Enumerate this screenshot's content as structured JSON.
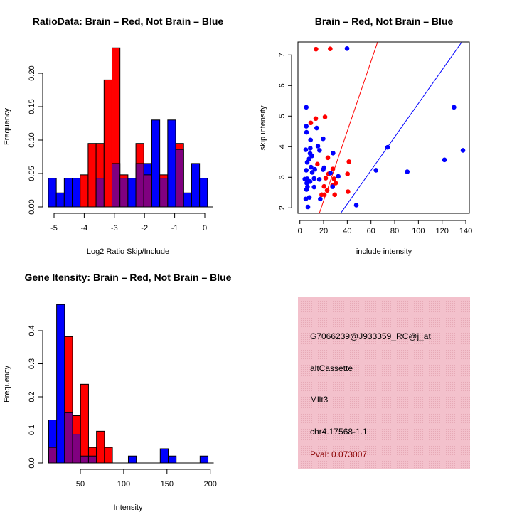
{
  "colors": {
    "red": "#ff0000",
    "blue": "#0000ff",
    "overlap": "#800080",
    "panel_bg": "#f3c1cc",
    "pval": "#8b0000"
  },
  "chart_data": [
    {
      "type": "bar",
      "title": "RatioData: Brain – Red, Not Brain – Blue",
      "xlabel": "Log2 Ratio Skip/Include",
      "ylabel": "Frequency",
      "xticks": [
        "-5",
        "-4",
        "-3",
        "-2",
        "-1",
        "0"
      ],
      "xtick_values": [
        -5,
        -4,
        -3,
        -2,
        -1,
        0
      ],
      "yticks": [
        "0.00",
        "0.05",
        "0.10",
        "0.15",
        "0.20"
      ],
      "ytick_values": [
        0,
        0.05,
        0.1,
        0.15,
        0.2
      ],
      "bin_start": -5.19,
      "bin_width": 0.264,
      "series": [
        {
          "name": "Brain",
          "color": "red",
          "values": [
            0,
            0,
            0,
            0,
            0.048,
            0.095,
            0.095,
            0.19,
            0.238,
            0.048,
            0,
            0.095,
            0.048,
            0,
            0.048,
            0,
            0.095,
            0,
            0,
            0
          ]
        },
        {
          "name": "Not Brain",
          "color": "blue",
          "values": [
            0.043,
            0.021,
            0.043,
            0.043,
            0,
            0,
            0.043,
            0,
            0.065,
            0.043,
            0.043,
            0.065,
            0.065,
            0.13,
            0.043,
            0.13,
            0.086,
            0.021,
            0.065,
            0.043
          ]
        }
      ]
    },
    {
      "type": "scatter",
      "title": "Brain – Red, Not Brain – Blue",
      "xlabel": "include intensity",
      "ylabel": "skip intensity",
      "xticks": [
        "0",
        "20",
        "40",
        "60",
        "80",
        "100",
        "120",
        "140"
      ],
      "xtick_values": [
        0,
        20,
        40,
        60,
        80,
        100,
        120,
        140
      ],
      "yticks": [
        "2",
        "3",
        "4",
        "5",
        "6",
        "7"
      ],
      "ytick_values": [
        2,
        3,
        4,
        5,
        6,
        7
      ],
      "xlim": [
        -2,
        143
      ],
      "ylim": [
        1.82,
        7.42
      ],
      "lines": [
        {
          "name": "Brain fit",
          "color": "red",
          "intercept": -0.05,
          "slope": 0.114
        },
        {
          "name": "Not Brain fit",
          "color": "blue",
          "intercept": -0.065,
          "slope": 0.0548
        }
      ],
      "series": [
        {
          "name": "Brain",
          "color": "red",
          "points": [
            [
              13.6,
              7.19
            ],
            [
              25.6,
              7.2
            ],
            [
              13.4,
              4.92
            ],
            [
              21.2,
              4.97
            ],
            [
              9.2,
              4.78
            ],
            [
              23.6,
              3.64
            ],
            [
              14.8,
              3.43
            ],
            [
              41.4,
              3.51
            ],
            [
              27.8,
              3.27
            ],
            [
              24.2,
              3.11
            ],
            [
              40.2,
              3.11
            ],
            [
              21.8,
              2.97
            ],
            [
              28.8,
              2.95
            ],
            [
              30.2,
              2.81
            ],
            [
              20.4,
              2.7
            ],
            [
              27.6,
              2.74
            ],
            [
              23,
              2.57
            ],
            [
              18.4,
              2.43
            ],
            [
              20.6,
              2.43
            ],
            [
              29.4,
              2.43
            ],
            [
              40.6,
              2.53
            ]
          ]
        },
        {
          "name": "Not Brain",
          "color": "blue",
          "points": [
            [
              39.8,
              7.21
            ],
            [
              5.4,
              5.29
            ],
            [
              5.4,
              4.67
            ],
            [
              5.6,
              4.47
            ],
            [
              14.2,
              4.61
            ],
            [
              9,
              4.22
            ],
            [
              19.6,
              4.26
            ],
            [
              8.8,
              3.95
            ],
            [
              15.2,
              4.02
            ],
            [
              5,
              3.9
            ],
            [
              16.6,
              3.88
            ],
            [
              8.6,
              3.78
            ],
            [
              10.2,
              3.7
            ],
            [
              7.8,
              3.6
            ],
            [
              6.2,
              3.49
            ],
            [
              28,
              3.79
            ],
            [
              9.4,
              3.33
            ],
            [
              20.4,
              3.31
            ],
            [
              5.4,
              3.23
            ],
            [
              12.6,
              3.26
            ],
            [
              10.4,
              3.16
            ],
            [
              19.6,
              3.25
            ],
            [
              25.8,
              3.14
            ],
            [
              32.4,
              3.03
            ],
            [
              4.2,
              2.94
            ],
            [
              6.2,
              2.95
            ],
            [
              12,
              2.96
            ],
            [
              16.4,
              2.93
            ],
            [
              8.6,
              2.86
            ],
            [
              5.8,
              2.81
            ],
            [
              7.2,
              2.87
            ],
            [
              6.4,
              2.69
            ],
            [
              12,
              2.68
            ],
            [
              27.6,
              2.69
            ],
            [
              5.6,
              2.6
            ],
            [
              8,
              2.34
            ],
            [
              5,
              2.29
            ],
            [
              17.2,
              2.29
            ],
            [
              6.8,
              2.03
            ],
            [
              47.6,
              2.09
            ],
            [
              64.2,
              3.23
            ],
            [
              74,
              3.98
            ],
            [
              90.6,
              3.18
            ],
            [
              122,
              3.57
            ],
            [
              130,
              5.29
            ],
            [
              137.6,
              3.88
            ]
          ]
        }
      ]
    },
    {
      "type": "bar",
      "title": "Gene Itensity: Brain – Red, Not Brain – Blue",
      "xlabel": "Intensity",
      "ylabel": "Frequency",
      "xticks": [
        "50",
        "100",
        "150",
        "200"
      ],
      "xtick_values": [
        50,
        100,
        150,
        200
      ],
      "yticks": [
        "0.0",
        "0.1",
        "0.2",
        "0.3",
        "0.4"
      ],
      "ytick_values": [
        0,
        0.1,
        0.2,
        0.3,
        0.4
      ],
      "bin_start": 13.4,
      "bin_width": 9.2,
      "series": [
        {
          "name": "Brain",
          "color": "red",
          "values": [
            0.047,
            0,
            0.382,
            0.143,
            0.238,
            0.047,
            0.096,
            0.047,
            0,
            0,
            0,
            0,
            0,
            0,
            0,
            0,
            0,
            0,
            0,
            0
          ]
        },
        {
          "name": "Not Brain",
          "color": "blue",
          "values": [
            0.13,
            0.479,
            0.152,
            0.087,
            0.021,
            0.021,
            0,
            0,
            0,
            0,
            0.021,
            0,
            0,
            0,
            0.043,
            0.021,
            0,
            0,
            0,
            0.021
          ]
        }
      ]
    }
  ],
  "info_panel": {
    "probe_id": "G7066239@J933359_RC@j_at",
    "event_type": "altCassette",
    "gene": "Mllt3",
    "location": "chr4.17568-1.1",
    "pval": "Pval: 0.073007"
  }
}
